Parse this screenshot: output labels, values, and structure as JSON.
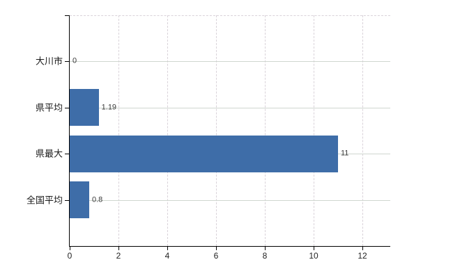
{
  "chart_data": {
    "type": "bar",
    "orientation": "horizontal",
    "title": "",
    "xlabel": "",
    "ylabel": "",
    "categories": [
      "大川市",
      "県平均",
      "県最大",
      "全国平均"
    ],
    "values": [
      0,
      1.19,
      11,
      0.8
    ],
    "value_labels": [
      "0",
      "1.19",
      "11",
      "0.8"
    ],
    "xticks": [
      0,
      2,
      4,
      6,
      8,
      10,
      12
    ],
    "xtick_labels": [
      "0",
      "2",
      "4",
      "6",
      "8",
      "10",
      "12"
    ],
    "xlim": [
      0,
      13.14
    ],
    "grid": true,
    "grid_vertical_style": "dashed",
    "grid_horizontal_style": "solid",
    "legend": false,
    "colors": {
      "bar": "#3e6da8",
      "grid_vertical": "#d9d2d9",
      "grid_horizontal": "#cfd6cf",
      "axis": "#000000",
      "value_label": "#3a3a3a",
      "category_label": "#1a1a1a",
      "tick_label": "#222222",
      "background": "#ffffff"
    }
  }
}
